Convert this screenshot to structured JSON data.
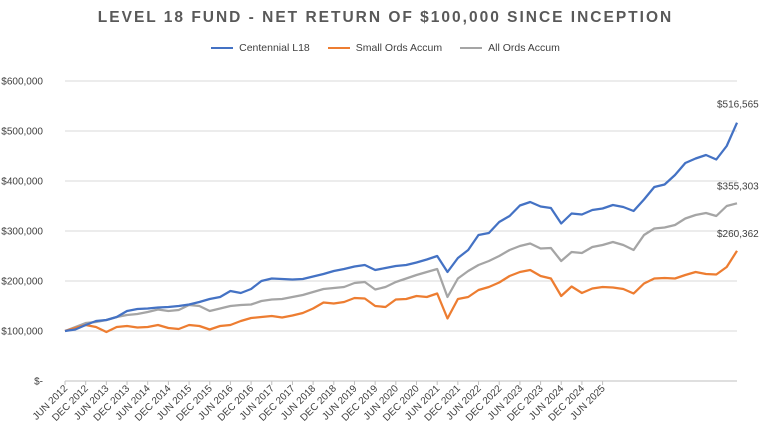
{
  "chart_data": {
    "type": "line",
    "title": "LEVEL 18 FUND - NET RETURN OF $100,000 SINCE INCEPTION",
    "ylim": [
      0,
      600000
    ],
    "y_ticks": [
      0,
      100000,
      200000,
      300000,
      400000,
      500000,
      600000
    ],
    "y_tick_labels": [
      "$-",
      "$100,000",
      "$200,000",
      "$300,000",
      "$400,000",
      "$500,000",
      "$600,000"
    ],
    "x_tick_labels": [
      "JUN 2012",
      "DEC 2012",
      "JUN 2013",
      "DEC 2013",
      "JUN 2014",
      "DEC 2014",
      "JUN 2015",
      "DEC 2015",
      "JUN 2016",
      "DEC 2016",
      "JUN 2017",
      "DEC 2017",
      "JUN 2018",
      "DEC 2018",
      "JUN 2019",
      "DEC 2019",
      "JUN 2020",
      "DEC 2020",
      "JUN 2021",
      "DEC 2021",
      "JUN 2022",
      "DEC 2022",
      "JUN 2023",
      "DEC 2023",
      "JUN 2024",
      "DEC 2024",
      "JUN 2025"
    ],
    "x_start": "Jun 2012",
    "x_step": "quarter",
    "grid": "horizontal",
    "legend_position": "top",
    "series": [
      {
        "name": "Centennial L18",
        "color": "#4472C4",
        "end_label": "$516,565",
        "values": [
          100000,
          103000,
          112000,
          120000,
          122000,
          128000,
          140000,
          144000,
          145000,
          147000,
          148000,
          150000,
          153000,
          158000,
          164000,
          168000,
          180000,
          176000,
          184000,
          200000,
          205000,
          204000,
          203000,
          204000,
          209000,
          214000,
          220000,
          224000,
          229000,
          232000,
          222000,
          226000,
          230000,
          232000,
          237000,
          243000,
          250000,
          218000,
          246000,
          262000,
          292000,
          296000,
          318000,
          330000,
          351000,
          358000,
          349000,
          346000,
          315000,
          335000,
          333000,
          342000,
          345000,
          352000,
          348000,
          340000,
          363000,
          388000,
          393000,
          412000,
          436000,
          445000,
          452000,
          443000,
          470000,
          516565
        ]
      },
      {
        "name": "Small Ords Accum",
        "color": "#ED7D31",
        "end_label": "$260,362",
        "values": [
          100000,
          106000,
          112000,
          108000,
          98000,
          108000,
          110000,
          107000,
          108000,
          112000,
          106000,
          104000,
          112000,
          110000,
          103000,
          110000,
          112000,
          120000,
          126000,
          128000,
          130000,
          127000,
          131000,
          136000,
          145000,
          157000,
          155000,
          158000,
          166000,
          165000,
          150000,
          148000,
          163000,
          164000,
          170000,
          168000,
          175000,
          125000,
          164000,
          168000,
          182000,
          188000,
          197000,
          210000,
          218000,
          222000,
          210000,
          205000,
          170000,
          189000,
          176000,
          185000,
          188000,
          187000,
          184000,
          175000,
          195000,
          205000,
          206000,
          205000,
          212000,
          218000,
          214000,
          213000,
          228000,
          260362
        ]
      },
      {
        "name": "All Ords Accum",
        "color": "#A5A5A5",
        "end_label": "$355,303",
        "values": [
          100000,
          108000,
          116000,
          118000,
          122000,
          128000,
          132000,
          134000,
          138000,
          143000,
          140000,
          142000,
          152000,
          150000,
          140000,
          145000,
          150000,
          152000,
          153000,
          160000,
          163000,
          164000,
          168000,
          172000,
          178000,
          184000,
          186000,
          188000,
          196000,
          198000,
          183000,
          188000,
          198000,
          205000,
          212000,
          218000,
          224000,
          168000,
          205000,
          220000,
          232000,
          240000,
          250000,
          262000,
          270000,
          275000,
          265000,
          266000,
          240000,
          258000,
          256000,
          268000,
          272000,
          278000,
          272000,
          262000,
          292000,
          305000,
          307000,
          312000,
          325000,
          332000,
          336000,
          330000,
          350000,
          355303
        ]
      }
    ]
  }
}
